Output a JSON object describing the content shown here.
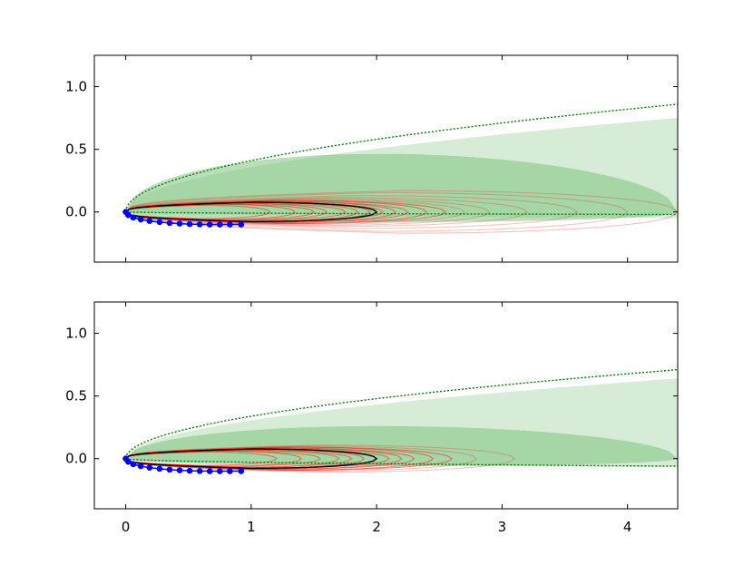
{
  "chart_data": [
    {
      "type": "line",
      "panel": "top",
      "xlim": [
        -0.25,
        4.4
      ],
      "ylim": [
        -0.4,
        1.25
      ],
      "xticks": [
        0,
        1,
        2,
        3,
        4
      ],
      "xtick_labels": [],
      "yticks": [
        0.0,
        0.5,
        1.0
      ],
      "ytick_labels": [
        "0.0",
        "0.5",
        "1.0"
      ],
      "grid": false,
      "colors": {
        "observed_points": "#0000ff",
        "true_curve": "#000000",
        "samples": "#e0301e",
        "band_inner": "#7fc27f",
        "band_outer": "#c8e6c8",
        "bound": "#007f00"
      },
      "observed_points": {
        "x": [
          0.0,
          0.02,
          0.06,
          0.12,
          0.19,
          0.27,
          0.35,
          0.43,
          0.51,
          0.59,
          0.67,
          0.75,
          0.83,
          0.92
        ],
        "y": [
          0.0,
          -0.025,
          -0.045,
          -0.06,
          -0.072,
          -0.081,
          -0.088,
          -0.093,
          -0.097,
          -0.099,
          -0.1,
          -0.1,
          -0.1,
          -0.1
        ]
      },
      "true_curve": {
        "tip_x": 2.0,
        "half_height": 0.1,
        "center_y": 0.0
      },
      "bounds": {
        "upper_end_y": 0.86,
        "lower_end_y": -0.02,
        "end_x": 4.4
      },
      "outer_band": {
        "upper_end_y": 0.75,
        "lower_end_y": -0.05,
        "end_x": 4.4
      },
      "inner_band": {
        "tip_x": 4.4,
        "upper_y": 0.5,
        "lower_y": -0.08
      },
      "sample_tips_x": [
        1.15,
        1.35,
        1.5,
        1.6,
        1.75,
        1.85,
        1.95,
        2.05,
        2.15,
        2.25,
        2.4,
        2.55,
        2.7,
        2.9,
        3.2,
        3.6,
        4.0,
        4.4
      ],
      "sample_half_heights": [
        0.07,
        0.08,
        0.08,
        0.09,
        0.09,
        0.1,
        0.1,
        0.1,
        0.11,
        0.11,
        0.12,
        0.12,
        0.13,
        0.14,
        0.15,
        0.17,
        0.2,
        0.22
      ]
    },
    {
      "type": "line",
      "panel": "bottom",
      "xlim": [
        -0.25,
        4.4
      ],
      "ylim": [
        -0.4,
        1.25
      ],
      "xticks": [
        0,
        1,
        2,
        3,
        4
      ],
      "xtick_labels": [
        "0",
        "1",
        "2",
        "3",
        "4"
      ],
      "yticks": [
        0.0,
        0.5,
        1.0
      ],
      "ytick_labels": [
        "0.0",
        "0.5",
        "1.0"
      ],
      "grid": false,
      "colors": {
        "observed_points": "#0000ff",
        "true_curve": "#000000",
        "samples": "#e0301e",
        "band_inner": "#7fc27f",
        "band_outer": "#c8e6c8",
        "bound": "#007f00"
      },
      "observed_points": {
        "x": [
          0.0,
          0.02,
          0.06,
          0.12,
          0.19,
          0.27,
          0.35,
          0.43,
          0.51,
          0.59,
          0.67,
          0.75,
          0.83,
          0.92
        ],
        "y": [
          0.0,
          -0.025,
          -0.045,
          -0.06,
          -0.072,
          -0.081,
          -0.088,
          -0.093,
          -0.097,
          -0.099,
          -0.1,
          -0.1,
          -0.1,
          -0.1
        ]
      },
      "true_curve": {
        "tip_x": 2.0,
        "half_height": 0.1,
        "center_y": 0.0
      },
      "bounds": {
        "upper_end_y": 0.71,
        "lower_end_y": -0.06,
        "end_x": 4.4
      },
      "outer_band": {
        "upper_end_y": 0.64,
        "lower_end_y": -0.07,
        "end_x": 4.4
      },
      "inner_band": {
        "tip_x": 4.4,
        "upper_y": 0.28,
        "lower_y": -0.06
      },
      "sample_tips_x": [
        1.2,
        1.4,
        1.55,
        1.7,
        1.8,
        1.9,
        2.0,
        2.1,
        2.2,
        2.3,
        2.45,
        2.6,
        2.8,
        3.1
      ],
      "sample_half_heights": [
        0.07,
        0.08,
        0.08,
        0.09,
        0.09,
        0.1,
        0.1,
        0.1,
        0.11,
        0.11,
        0.12,
        0.12,
        0.13,
        0.14
      ]
    }
  ]
}
